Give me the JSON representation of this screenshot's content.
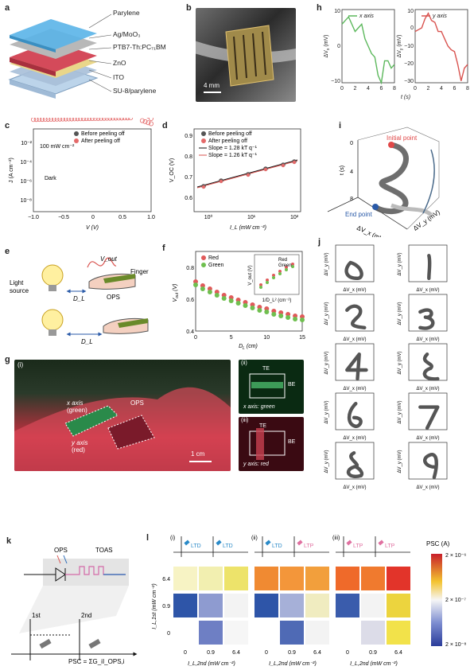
{
  "panel_labels": {
    "a": "a",
    "b": "b",
    "c": "c",
    "d": "d",
    "e": "e",
    "f": "f",
    "g": "g",
    "h": "h",
    "i": "i",
    "j": "j",
    "k": "k",
    "l": "l"
  },
  "panel_a": {
    "layers": [
      "Parylene",
      "Ag/MoO₃",
      "PTB7-Th:PC₇₁BM",
      "ZnO",
      "ITO",
      "SU-8/parylene"
    ]
  },
  "panel_b": {
    "scale_bar": "4 mm"
  },
  "panel_c": {
    "ylabel": "J (A cm⁻²)",
    "xlabel": "V (V)",
    "yticks": [
      "10⁻²",
      "10⁻⁴",
      "10⁻⁶",
      "10⁻⁸"
    ],
    "xticks": [
      "−1.0",
      "−0.5",
      "0",
      "0.5",
      "1.0"
    ],
    "legend": [
      "Before peeling off",
      "After peeling off"
    ],
    "ann_light": "100 mW cm⁻²",
    "ann_dark": "Dark"
  },
  "panel_d": {
    "ylabel": "V_OC (V)",
    "xlabel": "I_L (mW cm⁻²)",
    "legend": [
      "Before peeling off",
      "After peeling off",
      "Slope = 1.28 kT q⁻¹",
      "Slope = 1.26 kT q⁻¹"
    ],
    "yticks": [
      "0.6",
      "0.7",
      "0.8",
      "0.9"
    ],
    "xticks": [
      "10⁰",
      "10¹",
      "10²"
    ]
  },
  "chart_data": [
    {
      "type": "line",
      "panel": "h-x",
      "title": "",
      "series": [
        {
          "name": "x axis",
          "color": "#5cb85c",
          "x": [
            0,
            0.5,
            1,
            1.5,
            2,
            2.5,
            3,
            3.5,
            4,
            4.5,
            5,
            5.5,
            6,
            6.5,
            7,
            7.5,
            8
          ],
          "values": [
            6,
            7,
            8,
            6,
            4,
            5,
            6,
            2,
            0,
            -2,
            -3,
            -8,
            -10,
            -4,
            -4,
            -6,
            -5
          ]
        }
      ],
      "xlabel": "t (s)",
      "ylabel": "ΔV_x (mV)",
      "xlim": [
        0,
        8
      ],
      "ylim": [
        -10,
        10
      ]
    },
    {
      "type": "line",
      "panel": "h-y",
      "title": "",
      "series": [
        {
          "name": "y axis",
          "color": "#d9534f",
          "x": [
            0,
            0.5,
            1,
            1.5,
            2,
            2.5,
            3,
            3.5,
            4,
            4.5,
            5,
            5.5,
            6,
            6.5,
            7,
            7.5,
            8
          ],
          "values": [
            -2,
            -1,
            0,
            5,
            8,
            4,
            3,
            -2,
            -2,
            -6,
            -10,
            -12,
            -13,
            -20,
            -29,
            -22,
            -20
          ]
        }
      ],
      "xlabel": "t (s)",
      "ylabel": "ΔV_y (mV)",
      "xlim": [
        0,
        8
      ],
      "ylim": [
        -30,
        10
      ]
    },
    {
      "type": "scatter",
      "panel": "f",
      "title": "",
      "xlabel": "D_L (cm)",
      "ylabel": "V_out (V)",
      "xlim": [
        0,
        15
      ],
      "ylim": [
        0.35,
        0.85
      ],
      "series": [
        {
          "name": "Red",
          "color": "#e05a5a",
          "x": [
            0,
            1,
            2,
            3,
            4,
            5,
            6,
            7,
            8,
            9,
            10,
            11,
            12,
            13,
            14,
            15
          ],
          "values": [
            0.66,
            0.635,
            0.615,
            0.595,
            0.575,
            0.56,
            0.545,
            0.53,
            0.515,
            0.5,
            0.49,
            0.475,
            0.465,
            0.455,
            0.445,
            0.44
          ]
        },
        {
          "name": "Green",
          "color": "#6fbf4f",
          "x": [
            0,
            1,
            2,
            3,
            4,
            5,
            6,
            7,
            8,
            9,
            10,
            11,
            12,
            13,
            14,
            15
          ],
          "values": [
            0.64,
            0.615,
            0.595,
            0.575,
            0.555,
            0.54,
            0.525,
            0.51,
            0.495,
            0.48,
            0.47,
            0.455,
            0.445,
            0.435,
            0.425,
            0.42
          ]
        }
      ]
    },
    {
      "type": "heatmap",
      "panel": "l",
      "ylabel": "I_L,1st (mW cm⁻²)",
      "xlabel": "I_L,2nd (mW cm⁻²)",
      "categories_x": [
        "0",
        "0.9",
        "6.4"
      ],
      "categories_y": [
        "6.4",
        "0.9",
        "0"
      ],
      "colorbar": {
        "label": "PSC (A)",
        "ticks": [
          "2 × 10⁻⁶",
          "2 × 10⁻⁷",
          "2 × 10⁻⁸"
        ]
      },
      "maps": [
        {
          "name": "(i)",
          "labels": [
            "LTD",
            "LTD"
          ],
          "values": [
            [
              "#f7f3c4",
              "#f2efb0",
              "#ede36a"
            ],
            [
              "#2e55a8",
              "#8e9bd0",
              "#f3f3f3"
            ],
            [
              null,
              "#6e7fc4",
              "#f6f6f6"
            ]
          ]
        },
        {
          "name": "(ii)",
          "labels": [
            "LTD",
            "LTP"
          ],
          "values": [
            [
              "#f08a32",
              "#f3963a",
              "#f29f3c"
            ],
            [
              "#2e55a8",
              "#a6b0d8",
              "#f0ecc0"
            ],
            [
              null,
              "#4f6ab5",
              "#f3f3f3"
            ]
          ]
        },
        {
          "name": "(iii)",
          "labels": [
            "LTP",
            "LTP"
          ],
          "values": [
            [
              "#ef6a2a",
              "#f07a2e",
              "#e2342a"
            ],
            [
              "#3a5cac",
              "#f3f3f3",
              "#ecd43e"
            ],
            [
              null,
              "#dcdce8",
              "#f2e24a"
            ]
          ]
        }
      ]
    }
  ],
  "panel_e": {
    "light_source": "Light\nsource",
    "vout": "V_out",
    "finger": "Finger",
    "ops": "OPS",
    "dl": "D_L"
  },
  "panel_f": {
    "legend": [
      "Red",
      "Green"
    ],
    "inset_ylabel": "V_out (V)",
    "inset_xlabel": "1/D_L² (cm⁻²)",
    "inset_legend": [
      "Red",
      "Green"
    ]
  },
  "panel_g": {
    "i": "(i)",
    "ii": "(ii)",
    "iii": "(iii)",
    "x_axis": "x axis\n(green)",
    "y_axis": "y axis\n(red)",
    "ops": "OPS",
    "scale": "1 cm",
    "te": "TE",
    "be": "BE",
    "x_green": "x axis: green",
    "y_red": "y axis: red"
  },
  "panel_i": {
    "initial": "Initial point",
    "end": "End point",
    "t_label": "t (s)",
    "vx": "ΔV_x (mV)",
    "vy": "ΔV_y (mV)",
    "ticks": [
      "0",
      "4",
      "8"
    ]
  },
  "panel_j": {
    "ylabel": "ΔV_y (mV)",
    "xlabel": "ΔV_x (mV)"
  },
  "panel_k": {
    "ops": "OPS",
    "toas": "TOAS",
    "first": "1st",
    "second": "2nd",
    "psc": "PSC = ΣG_iI_OPS,i"
  }
}
